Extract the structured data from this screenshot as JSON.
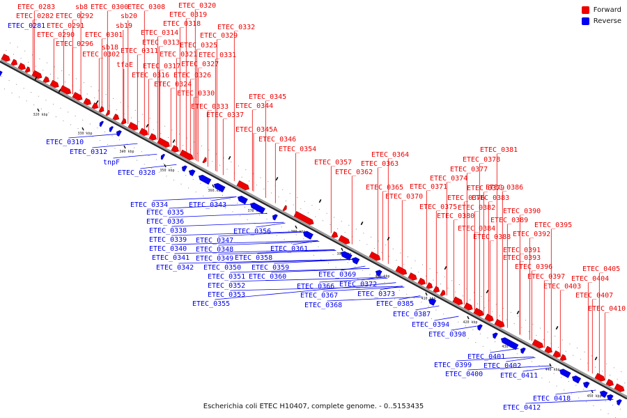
{
  "legend": {
    "forward": {
      "label": "Forward",
      "color": "#ee0000"
    },
    "reverse": {
      "label": "Reverse",
      "color": "#0000ee"
    }
  },
  "caption": "Escherichia coli ETEC H10407, complete genome. - 0..5153435",
  "ticks": [
    "320 kbp",
    "330 kbp",
    "340 kbp",
    "350 kbp",
    "360 kbp",
    "370 kbp",
    "380 kbp",
    "390 kbp",
    "400 kbp",
    "410 kbp",
    "420 kbp",
    "430 kbp",
    "440 kbp",
    "450 kbp"
  ],
  "forward_labels": [
    "ETEC_0283",
    "ETEC_0282",
    "ETEC_0292",
    "sb8",
    "ETEC_0300",
    "ETEC_0308",
    "ETEC_0320",
    "ETEC_0319",
    "sb20",
    "ETEC_0291",
    "ETEC_0318",
    "sb19",
    "ETEC_0290",
    "ETEC_0314",
    "ETEC_0332",
    "ETEC_0301",
    "ETEC_0329",
    "ETEC_0296",
    "ETEC_0313",
    "ETEC_0325",
    "sb18",
    "ETEC_0311",
    "ETEC_0302",
    "ETEC_0321",
    "ETEC_0331",
    "ETEC_0327",
    "tfaE",
    "ETEC_0317",
    "ETEC_0326",
    "ETEC_0316",
    "ETEC_0324",
    "ETEC_0330",
    "ETEC_0345",
    "ETEC_0344",
    "ETEC_0333",
    "ETEC_0337",
    "ETEC_0345A",
    "ETEC_0346",
    "ETEC_0354",
    "ETEC_0364",
    "ETEC_0357",
    "ETEC_0363",
    "ETEC_0362",
    "ETEC_0381",
    "ETEC_0378",
    "ETEC_0377",
    "ETEC_0374",
    "ETEC_0365",
    "ETEC_0371",
    "ETEC_0379",
    "ETEC_0386",
    "ETEC_0370",
    "ETEC_0376",
    "ETEC_0383",
    "ETEC_0375",
    "ETEC_0382",
    "ETEC_0390",
    "ETEC_0380",
    "ETEC_0389",
    "ETEC_0395",
    "ETEC_0384",
    "ETEC_0392",
    "ETEC_0388",
    "ETEC_0391",
    "ETEC_0393",
    "ETEC_0396",
    "ETEC_0405",
    "ETEC_0397",
    "ETEC_0404",
    "ETEC_0403",
    "ETEC_0407",
    "ETEC_0410"
  ],
  "reverse_labels": [
    "ETEC_0281",
    "ETEC_0310",
    "ETEC_0312",
    "tnpF",
    "ETEC_0328",
    "ETEC_0334",
    "ETEC_0343",
    "ETEC_0335",
    "ETEC_0336",
    "ETEC_0338",
    "ETEC_0339",
    "ETEC_0347",
    "ETEC_0356",
    "ETEC_0340",
    "ETEC_0348",
    "ETEC_0341",
    "ETEC_0361",
    "ETEC_0349",
    "ETEC_0358",
    "ETEC_0342",
    "ETEC_0350",
    "ETEC_0359",
    "ETEC_0351",
    "ETEC_0360",
    "ETEC_0369",
    "ETEC_0352",
    "ETEC_0366",
    "ETEC_0372",
    "ETEC_0353",
    "ETEC_0367",
    "ETEC_0373",
    "ETEC_0355",
    "ETEC_0368",
    "ETEC_0385",
    "ETEC_0387",
    "ETEC_0394",
    "ETEC_0398",
    "ETEC_0401",
    "ETEC_0399",
    "ETEC_0402",
    "ETEC_0400",
    "ETEC_0411",
    "ETEC_0418",
    "ETEC_0412"
  ]
}
